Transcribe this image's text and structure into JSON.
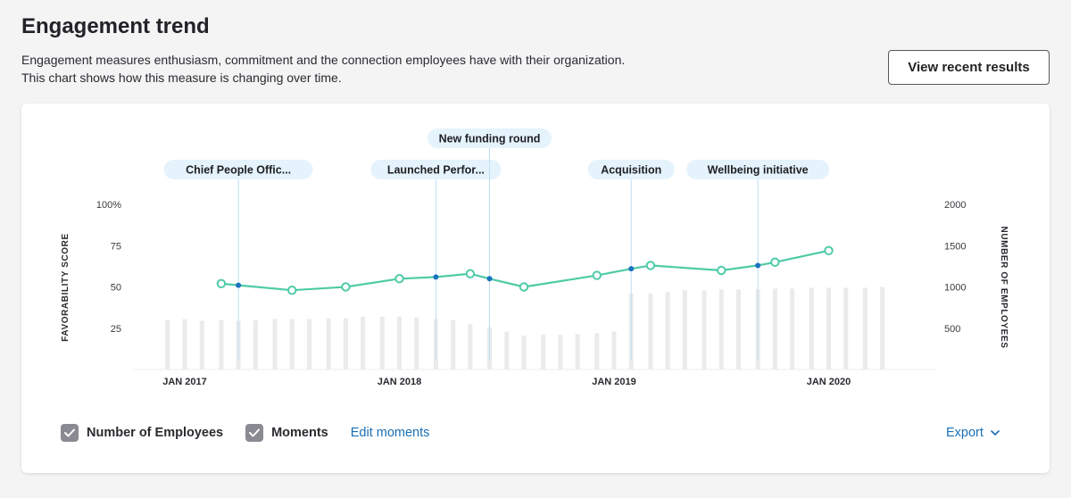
{
  "header": {
    "title": "Engagement trend",
    "description_line1": "Engagement measures enthusiasm, commitment and the connection employees have with their organization.",
    "description_line2": "This chart shows how this measure is changing over time.",
    "view_button_label": "View recent results"
  },
  "controls": {
    "employees_label": "Number of Employees",
    "employees_checked": true,
    "moments_label": "Moments",
    "moments_checked": true,
    "edit_moments_label": "Edit moments",
    "export_label": "Export"
  },
  "colors": {
    "line": "#4ecba6",
    "marker_fill": "#1a73c0",
    "bar": "#ebebec",
    "moment_label_bg": "#e5f3fc",
    "link": "#1a6fb5"
  },
  "chart_data": {
    "type": "line",
    "ylabel": "FAVORABILITY SCORE",
    "y2label": "NUMBER OF EMPLOYEES",
    "ylim": [
      0,
      100
    ],
    "y2lim": [
      0,
      2000
    ],
    "yticks": [
      "25",
      "50",
      "75",
      "100%"
    ],
    "y2ticks": [
      "500",
      "1000",
      "1500",
      "2000"
    ],
    "xtick_labels": [
      "JAN 2017",
      "JAN 2018",
      "JAN 2019",
      "JAN 2020"
    ],
    "series": [
      {
        "type": "line",
        "points": [
          {
            "x": 2017.17,
            "y": 52,
            "marker": "circle"
          },
          {
            "x": 2017.25,
            "y": 51,
            "marker": "dot"
          },
          {
            "x": 2017.5,
            "y": 48,
            "marker": "circle"
          },
          {
            "x": 2017.75,
            "y": 50,
            "marker": "circle"
          },
          {
            "x": 2018.0,
            "y": 55,
            "marker": "circle"
          },
          {
            "x": 2018.17,
            "y": 56,
            "marker": "dot"
          },
          {
            "x": 2018.33,
            "y": 58,
            "marker": "circle"
          },
          {
            "x": 2018.42,
            "y": 55,
            "marker": "dot"
          },
          {
            "x": 2018.58,
            "y": 50,
            "marker": "circle"
          },
          {
            "x": 2018.92,
            "y": 57,
            "marker": "circle"
          },
          {
            "x": 2019.08,
            "y": 61,
            "marker": "dot"
          },
          {
            "x": 2019.17,
            "y": 63,
            "marker": "circle"
          },
          {
            "x": 2019.5,
            "y": 60,
            "marker": "circle"
          },
          {
            "x": 2019.67,
            "y": 63,
            "marker": "dot"
          },
          {
            "x": 2019.75,
            "y": 65,
            "marker": "circle"
          },
          {
            "x": 2020.0,
            "y": 72,
            "marker": "circle"
          }
        ]
      },
      {
        "type": "bar",
        "axis": "right",
        "x": [
          2016.92,
          2017.0,
          2017.08,
          2017.17,
          2017.25,
          2017.33,
          2017.42,
          2017.5,
          2017.58,
          2017.67,
          2017.75,
          2017.83,
          2017.92,
          2018.0,
          2018.08,
          2018.17,
          2018.25,
          2018.33,
          2018.42,
          2018.5,
          2018.58,
          2018.67,
          2018.75,
          2018.83,
          2018.92,
          2019.0,
          2019.08,
          2019.17,
          2019.25,
          2019.33,
          2019.42,
          2019.5,
          2019.58,
          2019.67,
          2019.75,
          2019.83,
          2019.92,
          2020.0,
          2020.08,
          2020.17,
          2020.25
        ],
        "values": [
          600,
          610,
          590,
          600,
          590,
          600,
          610,
          610,
          610,
          620,
          620,
          640,
          640,
          640,
          630,
          610,
          600,
          550,
          510,
          460,
          410,
          420,
          420,
          430,
          440,
          460,
          920,
          920,
          940,
          960,
          960,
          970,
          970,
          970,
          980,
          980,
          990,
          990,
          990,
          990,
          1000
        ]
      }
    ],
    "annotations": [
      {
        "label": "Chief People Offic...",
        "x": 2017.25,
        "row": "low"
      },
      {
        "label": "Launched Perfor...",
        "x": 2018.17,
        "row": "low"
      },
      {
        "label": "New funding round",
        "x": 2018.42,
        "row": "high"
      },
      {
        "label": "Acquisition",
        "x": 2019.08,
        "row": "low"
      },
      {
        "label": "Wellbeing initiative",
        "x": 2019.67,
        "row": "low"
      }
    ]
  }
}
